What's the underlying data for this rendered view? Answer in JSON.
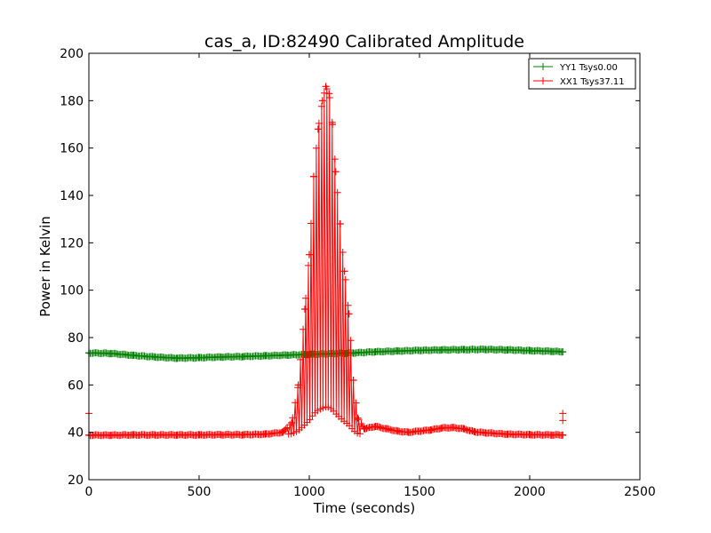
{
  "chart_data": {
    "type": "line",
    "title": "cas_a, ID:82490 Calibrated Amplitude",
    "xlabel": "Time (seconds)",
    "ylabel": "Power in Kelvin",
    "xlim": [
      0,
      2500
    ],
    "ylim": [
      20,
      200
    ],
    "xticks": [
      0,
      500,
      1000,
      1500,
      2000,
      2500
    ],
    "yticks": [
      20,
      40,
      60,
      80,
      100,
      120,
      140,
      160,
      180,
      200
    ],
    "grid": false,
    "legend_position": "top-right",
    "marker": "+",
    "series": [
      {
        "name": "YY1 Tsys0.00",
        "color": "#008000",
        "x": [
          0,
          100,
          200,
          300,
          400,
          500,
          600,
          700,
          800,
          900,
          1000,
          1100,
          1200,
          1300,
          1400,
          1500,
          1600,
          1700,
          1800,
          1900,
          2000,
          2100,
          2150
        ],
        "y": [
          73.5,
          73.3,
          72.5,
          71.8,
          71.3,
          71.5,
          71.8,
          72.0,
          72.3,
          72.6,
          72.9,
          73.2,
          73.5,
          74.0,
          74.3,
          74.6,
          74.8,
          74.9,
          75.0,
          74.8,
          74.5,
          74.2,
          74.0
        ]
      },
      {
        "name": "XX1 Tsys37.11",
        "color": "#ff0000",
        "x": [
          0,
          100,
          200,
          300,
          400,
          500,
          600,
          700,
          800,
          880,
          920,
          950,
          980,
          1000,
          1020,
          1040,
          1060,
          1075,
          1090,
          1105,
          1120,
          1140,
          1160,
          1180,
          1200,
          1220,
          1250,
          1300,
          1350,
          1400,
          1450,
          1500,
          1550,
          1600,
          1650,
          1700,
          1750,
          1800,
          1900,
          2000,
          2100,
          2150
        ],
        "y": [
          38.8,
          38.8,
          38.9,
          38.9,
          38.9,
          38.9,
          39.0,
          39.0,
          39.2,
          40.0,
          44.0,
          60.0,
          92.0,
          115.0,
          148.0,
          168.0,
          180.0,
          186.0,
          183.0,
          170.0,
          150.0,
          128.0,
          108.0,
          90.0,
          62.0,
          46.0,
          41.5,
          42.5,
          41.5,
          40.5,
          40.0,
          40.5,
          41.0,
          41.8,
          42.0,
          41.5,
          40.2,
          39.8,
          39.2,
          39.0,
          38.9,
          38.9
        ]
      }
    ]
  }
}
